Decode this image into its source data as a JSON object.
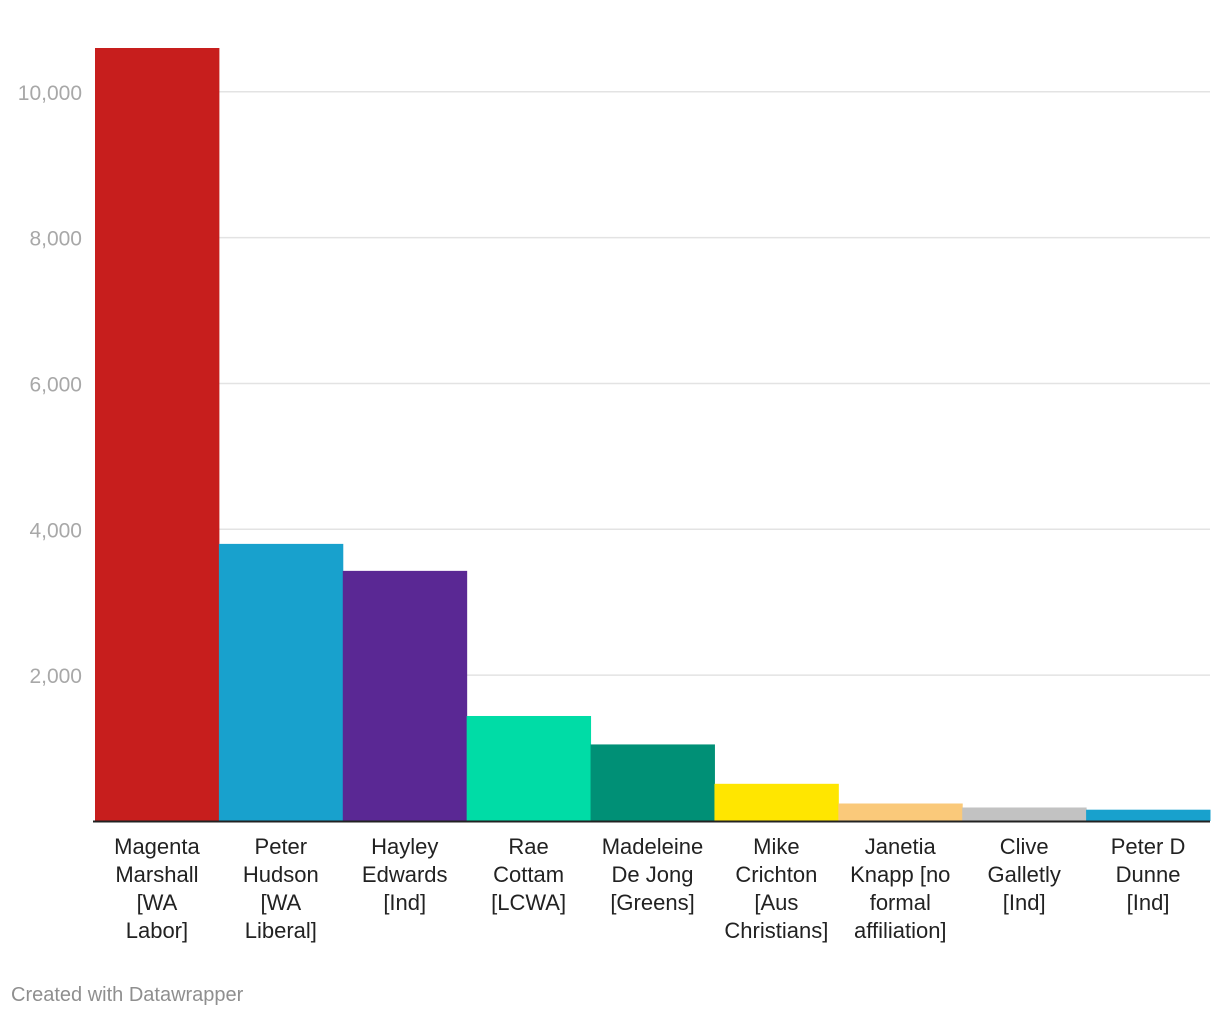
{
  "chart_data": {
    "type": "bar",
    "title": "",
    "xlabel": "",
    "ylabel": "",
    "categories": [
      [
        "Magenta",
        "Marshall",
        "[WA",
        "Labor]"
      ],
      [
        "Peter",
        "Hudson",
        "[WA",
        "Liberal]"
      ],
      [
        "Hayley",
        "Edwards",
        "[Ind]"
      ],
      [
        "Rae",
        "Cottam",
        "[LCWA]"
      ],
      [
        "Madeleine",
        "De Jong",
        "[Greens]"
      ],
      [
        "Mike",
        "Crichton",
        "[Aus",
        "Christians]"
      ],
      [
        "Janetia",
        "Knapp [no",
        "formal",
        "affiliation]"
      ],
      [
        "Clive",
        "Galletly",
        "[Ind]"
      ],
      [
        "Peter D",
        "Dunne",
        "[Ind]"
      ]
    ],
    "values": [
      10600,
      3800,
      3430,
      1440,
      1050,
      510,
      240,
      185,
      155
    ],
    "colors": [
      "#c71e1d",
      "#18a1cd",
      "#5a2894",
      "#00dca6",
      "#009076",
      "#ffe600",
      "#fac97a",
      "#c2c2c2",
      "#18a1cd"
    ],
    "ylim": [
      0,
      10600
    ],
    "yticks": [
      2000,
      4000,
      6000,
      8000,
      10000
    ],
    "ytick_labels": [
      "2,000",
      "4,000",
      "6,000",
      "8,000",
      "10,000"
    ],
    "grid": true,
    "legend": "none"
  },
  "footer": {
    "credit": "Created with Datawrapper"
  }
}
